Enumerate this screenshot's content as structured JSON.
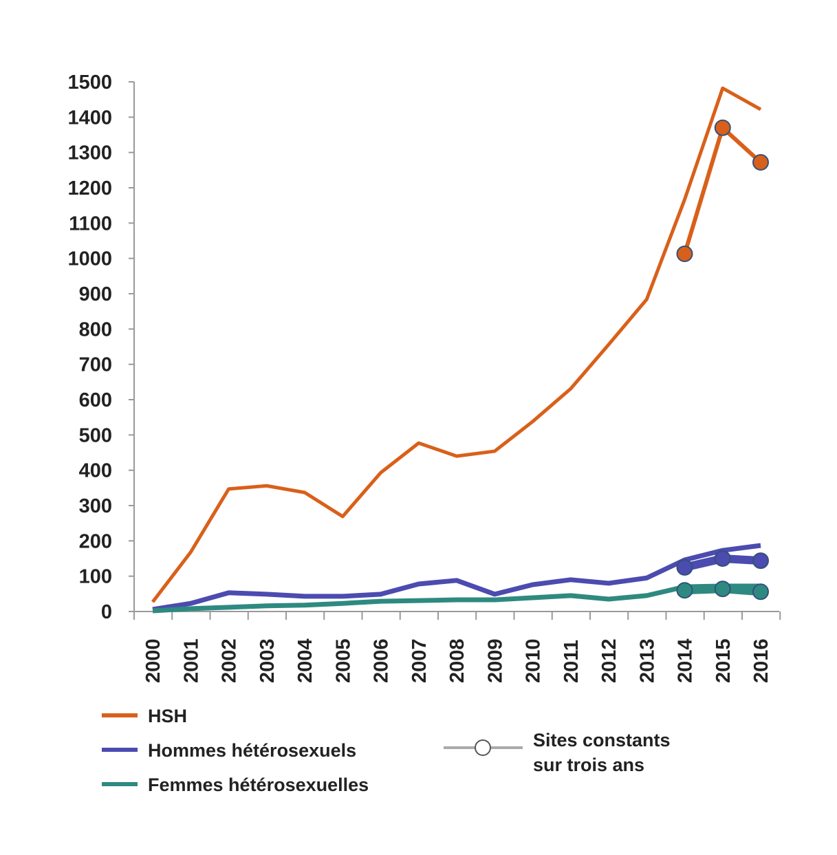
{
  "chart_data": {
    "type": "line",
    "title": "",
    "xlabel": "",
    "ylabel": "",
    "ylim": [
      0,
      1500
    ],
    "yticks": [
      "0",
      "100",
      "200",
      "300",
      "400",
      "500",
      "600",
      "700",
      "800",
      "900",
      "1000",
      "1100",
      "1200",
      "1300",
      "1400",
      "1500"
    ],
    "x": [
      "2000",
      "2001",
      "2002",
      "2003",
      "2004",
      "2005",
      "2006",
      "2007",
      "2008",
      "2009",
      "2010",
      "2011",
      "2012",
      "2013",
      "2014",
      "2015",
      "2016"
    ],
    "grid": false,
    "legend_position": "bottom",
    "series": [
      {
        "name": "HSH",
        "color": "#d9601a",
        "values": [
          27,
          168,
          347,
          356,
          337,
          269,
          393,
          477,
          440,
          454,
          538,
          631,
          756,
          884,
          1167,
          1482,
          1422
        ]
      },
      {
        "name": "Hommes hétérosexuels",
        "color": "#4b4bb0",
        "values": [
          6,
          23,
          53,
          49,
          43,
          43,
          49,
          78,
          88,
          49,
          76,
          90,
          80,
          95,
          146,
          173,
          187
        ]
      },
      {
        "name": "Femmes hétérosexuelles",
        "color": "#2e8a80",
        "values": [
          2,
          8,
          12,
          16,
          18,
          23,
          29,
          31,
          33,
          33,
          39,
          45,
          35,
          45,
          70,
          72,
          72
        ]
      }
    ],
    "constant_sites_series": [
      {
        "name": "HSH",
        "color": "#d9601a",
        "x": [
          "2014",
          "2015",
          "2016"
        ],
        "values": [
          1013,
          1370,
          1272
        ]
      },
      {
        "name": "Hommes hétérosexuels",
        "color": "#4b4bb0",
        "x": [
          "2014",
          "2015",
          "2016"
        ],
        "values": [
          125,
          150,
          144
        ]
      },
      {
        "name": "Femmes hétérosexuelles",
        "color": "#2e8a80",
        "x": [
          "2014",
          "2015",
          "2016"
        ],
        "values": [
          60,
          64,
          56
        ]
      }
    ],
    "legend": {
      "hsh": "HSH",
      "hommes": "Hommes hétérosexuels",
      "femmes": "Femmes hétérosexuelles",
      "sites_line1": "Sites constants",
      "sites_line2": "sur trois ans"
    }
  }
}
